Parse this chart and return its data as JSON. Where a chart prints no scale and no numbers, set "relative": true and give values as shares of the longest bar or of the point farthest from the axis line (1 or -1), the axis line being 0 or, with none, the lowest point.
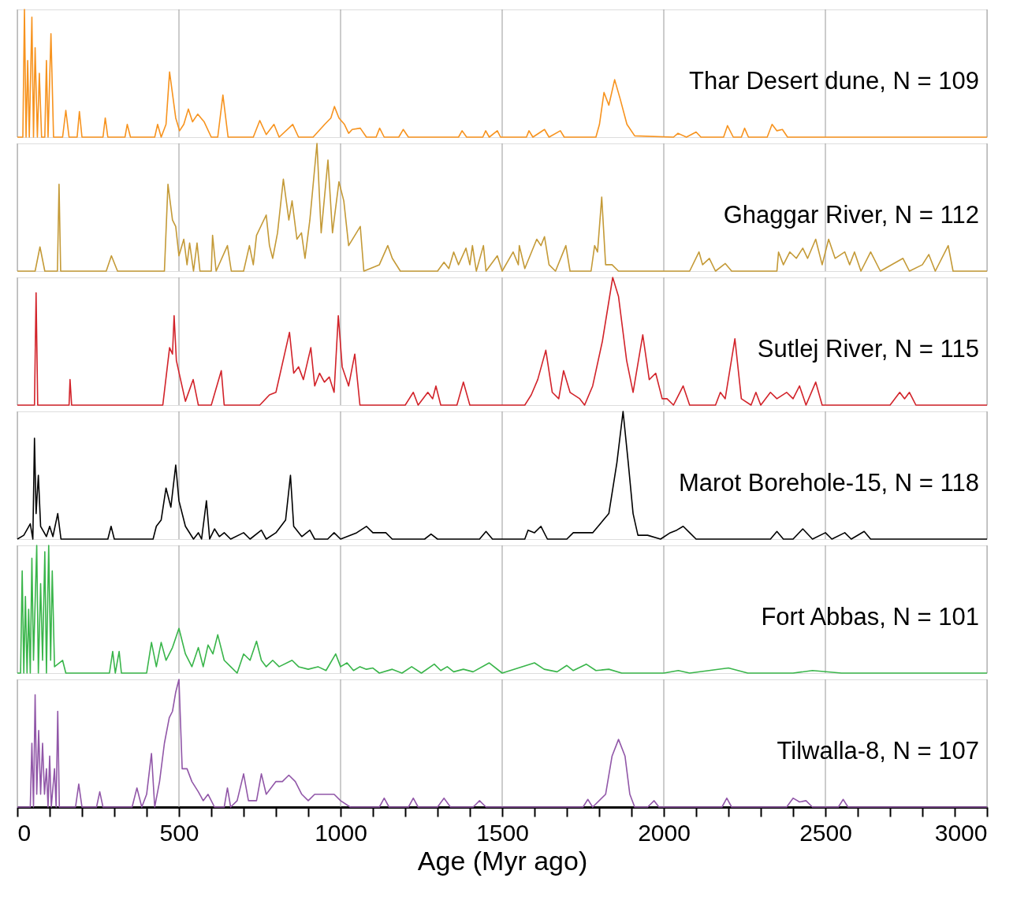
{
  "chart_data": [
    {
      "type": "line",
      "relative": true,
      "xlim": [
        0,
        3000
      ],
      "xticks": [
        0,
        500,
        1000,
        1500,
        2000,
        2500,
        3000
      ],
      "grid": "x",
      "tick_labels": false,
      "series": [
        {
          "name": "Thar Desert dune, N = 109",
          "color": "#f7931e",
          "x": [
            0,
            17,
            22,
            27,
            32,
            37,
            45,
            50,
            55,
            62,
            68,
            75,
            85,
            90,
            95,
            104,
            112,
            140,
            150,
            160,
            185,
            192,
            200,
            265,
            272,
            280,
            333,
            340,
            350,
            425,
            434,
            445,
            460,
            471,
            490,
            502,
            515,
            529,
            542,
            558,
            578,
            600,
            620,
            636,
            652,
            730,
            750,
            770,
            794,
            810,
            852,
            870,
            915,
            951,
            970,
            981,
            995,
            1012,
            1025,
            1036,
            1061,
            1080,
            1110,
            1121,
            1135,
            1180,
            1194,
            1210,
            1365,
            1376,
            1390,
            1440,
            1449,
            1460,
            1485,
            1495,
            1575,
            1583,
            1595,
            1631,
            1645,
            1680,
            1692,
            1790,
            1801,
            1815,
            1830,
            1848,
            1865,
            1886,
            1910,
            2030,
            2044,
            2070,
            2100,
            2115,
            2185,
            2197,
            2215,
            2240,
            2250,
            2262,
            2320,
            2335,
            2350,
            2367,
            2383,
            3000
          ],
          "values": [
            0,
            0,
            1.0,
            0,
            0.6,
            0,
            0.94,
            0,
            0.7,
            0,
            0.5,
            0,
            0,
            0.6,
            0,
            0.81,
            0,
            0,
            0.21,
            0,
            0,
            0.2,
            0,
            0,
            0.15,
            0,
            0,
            0.1,
            0,
            0,
            0.1,
            0,
            0.1,
            0.51,
            0.15,
            0.05,
            0.1,
            0.22,
            0.12,
            0.18,
            0.12,
            0,
            0,
            0.33,
            0,
            0,
            0.13,
            0.02,
            0.1,
            0,
            0.1,
            0,
            0,
            0.1,
            0.15,
            0.24,
            0.15,
            0.1,
            0.03,
            0.06,
            0.07,
            0,
            0,
            0.07,
            0,
            0,
            0.06,
            0,
            0,
            0.05,
            0,
            0,
            0.05,
            0,
            0.05,
            0,
            0,
            0.05,
            0,
            0.06,
            0,
            0.05,
            0,
            0,
            0.1,
            0.35,
            0.25,
            0.45,
            0.3,
            0.1,
            0.01,
            0,
            0.03,
            0,
            0.04,
            0,
            0,
            0.09,
            0,
            0,
            0.07,
            0,
            0,
            0.1,
            0.05,
            0.06,
            0,
            0
          ]
        }
      ]
    },
    {
      "type": "line",
      "relative": true,
      "xlim": [
        0,
        3000
      ],
      "xticks": [
        0,
        500,
        1000,
        1500,
        2000,
        2500,
        3000
      ],
      "grid": "x",
      "tick_labels": false,
      "series": [
        {
          "name": "Ghaggar River, N = 112",
          "color": "#c49a37",
          "x": [
            0,
            55,
            70,
            85,
            124,
            129,
            134,
            275,
            291,
            310,
            455,
            466,
            480,
            490,
            500,
            515,
            525,
            533,
            545,
            556,
            565,
            600,
            604,
            615,
            650,
            662,
            700,
            718,
            730,
            740,
            770,
            780,
            790,
            805,
            823,
            840,
            850,
            865,
            879,
            890,
            905,
            927,
            940,
            961,
            975,
            995,
            1010,
            1025,
            1061,
            1072,
            1120,
            1146,
            1160,
            1185,
            1300,
            1320,
            1335,
            1350,
            1365,
            1388,
            1400,
            1408,
            1420,
            1442,
            1450,
            1485,
            1500,
            1534,
            1550,
            1553,
            1570,
            1607,
            1620,
            1631,
            1645,
            1665,
            1697,
            1710,
            1775,
            1786,
            1795,
            1808,
            1820,
            1840,
            1860,
            2080,
            2109,
            2120,
            2141,
            2160,
            2190,
            2210,
            2350,
            2355,
            2370,
            2390,
            2410,
            2430,
            2445,
            2470,
            2490,
            2510,
            2530,
            2560,
            2575,
            2590,
            2610,
            2640,
            2670,
            2740,
            2760,
            2800,
            2820,
            2840,
            2880,
            2895,
            3000
          ],
          "values": [
            0,
            0,
            0.19,
            0,
            0,
            0.68,
            0,
            0,
            0.12,
            0,
            0,
            0.68,
            0.4,
            0.35,
            0.12,
            0.25,
            0.05,
            0.22,
            0,
            0.22,
            0,
            0,
            0.28,
            0,
            0.2,
            0,
            0,
            0.2,
            0.05,
            0.28,
            0.44,
            0.2,
            0.1,
            0.3,
            0.72,
            0.4,
            0.55,
            0.25,
            0.3,
            0.1,
            0.4,
            1.0,
            0.3,
            0.87,
            0.3,
            0.7,
            0.55,
            0.2,
            0.35,
            0,
            0.05,
            0.2,
            0.1,
            0,
            0,
            0.07,
            0.02,
            0.15,
            0.05,
            0.18,
            0.05,
            0.2,
            0,
            0.2,
            0,
            0.12,
            0,
            0.15,
            0.05,
            0.2,
            0.02,
            0.25,
            0.2,
            0.27,
            0.05,
            0,
            0.2,
            0,
            0,
            0.2,
            0.15,
            0.58,
            0.05,
            0.05,
            0,
            0,
            0.15,
            0.05,
            0.1,
            0,
            0.06,
            0,
            0,
            0.15,
            0.05,
            0.15,
            0.1,
            0.18,
            0.1,
            0.25,
            0.05,
            0.25,
            0.1,
            0.15,
            0.05,
            0.15,
            0,
            0.15,
            0,
            0.1,
            0,
            0.05,
            0.13,
            0,
            0.2,
            0,
            0
          ]
        }
      ]
    },
    {
      "type": "line",
      "relative": true,
      "xlim": [
        0,
        3000
      ],
      "xticks": [
        0,
        500,
        1000,
        1500,
        2000,
        2500,
        3000
      ],
      "grid": "x",
      "tick_labels": false,
      "series": [
        {
          "name": "Sutlej River, N = 115",
          "color": "#d2232a",
          "x": [
            0,
            53,
            58,
            63,
            160,
            163,
            168,
            450,
            471,
            480,
            485,
            492,
            505,
            520,
            544,
            560,
            600,
            631,
            640,
            750,
            780,
            800,
            842,
            855,
            870,
            885,
            908,
            920,
            935,
            950,
            965,
            980,
            993,
            1005,
            1025,
            1044,
            1060,
            1200,
            1225,
            1240,
            1270,
            1285,
            1295,
            1310,
            1360,
            1380,
            1400,
            1570,
            1590,
            1610,
            1635,
            1655,
            1675,
            1690,
            1710,
            1740,
            1755,
            1780,
            1810,
            1842,
            1860,
            1885,
            1905,
            1925,
            1935,
            1955,
            1975,
            1995,
            2010,
            2030,
            2060,
            2080,
            2160,
            2175,
            2190,
            2220,
            2240,
            2270,
            2285,
            2300,
            2330,
            2350,
            2380,
            2400,
            2420,
            2440,
            2470,
            2490,
            2700,
            2730,
            2745,
            2760,
            2780,
            3000
          ],
          "values": [
            0,
            0,
            0.88,
            0,
            0,
            0.2,
            0,
            0,
            0.45,
            0.4,
            0.7,
            0.35,
            0.2,
            0.03,
            0.2,
            0,
            0,
            0.27,
            0,
            0,
            0.08,
            0.1,
            0.57,
            0.25,
            0.3,
            0.2,
            0.45,
            0.15,
            0.25,
            0.18,
            0.22,
            0.1,
            0.7,
            0.3,
            0.15,
            0.4,
            0,
            0,
            0.1,
            0,
            0.1,
            0.05,
            0.15,
            0,
            0,
            0.18,
            0,
            0,
            0.08,
            0.2,
            0.43,
            0.1,
            0.05,
            0.27,
            0.1,
            0.05,
            0,
            0.15,
            0.5,
            1.0,
            0.85,
            0.35,
            0.1,
            0.4,
            0.55,
            0.2,
            0.25,
            0.05,
            0.05,
            0,
            0.15,
            0,
            0,
            0.1,
            0.05,
            0.52,
            0.05,
            0,
            0.1,
            0,
            0.1,
            0.05,
            0.1,
            0.05,
            0.15,
            0,
            0.18,
            0,
            0,
            0.1,
            0.05,
            0.1,
            0,
            0
          ]
        }
      ]
    },
    {
      "type": "line",
      "relative": true,
      "xlim": [
        0,
        3000
      ],
      "xticks": [
        0,
        500,
        1000,
        1500,
        2000,
        2500,
        3000
      ],
      "grid": "x",
      "tick_labels": false,
      "series": [
        {
          "name": "Marot Borehole-15, N = 118",
          "color": "#000000",
          "x": [
            0,
            20,
            40,
            48,
            53,
            58,
            65,
            72,
            90,
            100,
            110,
            125,
            135,
            280,
            290,
            300,
            420,
            430,
            445,
            460,
            475,
            490,
            500,
            520,
            545,
            560,
            570,
            585,
            595,
            610,
            625,
            640,
            660,
            700,
            720,
            755,
            770,
            800,
            830,
            845,
            855,
            880,
            905,
            920,
            960,
            980,
            1000,
            1050,
            1080,
            1100,
            1140,
            1160,
            1260,
            1280,
            1300,
            1430,
            1450,
            1470,
            1570,
            1580,
            1600,
            1620,
            1640,
            1700,
            1720,
            1780,
            1830,
            1855,
            1874,
            1890,
            1905,
            1920,
            1950,
            1990,
            2020,
            2040,
            2060,
            2080,
            2100,
            2330,
            2350,
            2370,
            2400,
            2430,
            2460,
            2500,
            2520,
            2560,
            2580,
            2620,
            2640,
            3000
          ],
          "values": [
            0,
            0.03,
            0.12,
            0,
            0.79,
            0.2,
            0.5,
            0.1,
            0.02,
            0.1,
            0.02,
            0.2,
            0,
            0,
            0.1,
            0,
            0,
            0.1,
            0.15,
            0.4,
            0.25,
            0.58,
            0.3,
            0.1,
            0,
            0.05,
            0,
            0.3,
            0,
            0.08,
            0.02,
            0.05,
            0,
            0.05,
            0,
            0.07,
            0,
            0.05,
            0.15,
            0.5,
            0.1,
            0.02,
            0.07,
            0,
            0,
            0.05,
            0,
            0.05,
            0.1,
            0.05,
            0.05,
            0,
            0,
            0.04,
            0,
            0,
            0.06,
            0,
            0,
            0.07,
            0.05,
            0.1,
            0,
            0,
            0.05,
            0.05,
            0.2,
            0.6,
            1.0,
            0.6,
            0.2,
            0.03,
            0.03,
            0,
            0.05,
            0.07,
            0.1,
            0.05,
            0,
            0,
            0.06,
            0,
            0,
            0.08,
            0,
            0.05,
            0,
            0.05,
            0,
            0.06,
            0,
            0
          ]
        }
      ]
    },
    {
      "type": "line",
      "relative": true,
      "xlim": [
        0,
        3000
      ],
      "xticks": [
        0,
        500,
        1000,
        1500,
        2000,
        2500,
        3000
      ],
      "grid": "x",
      "tick_labels": false,
      "series": [
        {
          "name": "Fort Abbas, N = 101",
          "color": "#39b54a",
          "x": [
            0,
            10,
            15,
            20,
            25,
            30,
            35,
            40,
            45,
            50,
            60,
            65,
            72,
            78,
            85,
            90,
            97,
            103,
            108,
            115,
            140,
            150,
            285,
            295,
            303,
            315,
            322,
            400,
            415,
            430,
            445,
            460,
            480,
            500,
            520,
            540,
            560,
            575,
            590,
            605,
            620,
            640,
            660,
            680,
            700,
            720,
            740,
            755,
            770,
            790,
            810,
            850,
            870,
            900,
            930,
            955,
            985,
            1000,
            1020,
            1040,
            1060,
            1080,
            1100,
            1120,
            1160,
            1190,
            1220,
            1250,
            1290,
            1310,
            1330,
            1350,
            1380,
            1410,
            1460,
            1500,
            1600,
            1630,
            1670,
            1700,
            1720,
            1760,
            1790,
            1830,
            1870,
            2000,
            2045,
            2080,
            2200,
            2260,
            2400,
            2460,
            2550,
            3000
          ],
          "values": [
            0,
            0,
            0.8,
            0,
            0.6,
            0,
            0.5,
            0,
            0.9,
            0.1,
            1.0,
            0,
            0.7,
            0.1,
            0.95,
            0,
            1.0,
            0.1,
            0.8,
            0.05,
            0.1,
            0,
            0,
            0.17,
            0,
            0.17,
            0,
            0,
            0.24,
            0.05,
            0.24,
            0.1,
            0.2,
            0.35,
            0.15,
            0.05,
            0.2,
            0.05,
            0.22,
            0.15,
            0.3,
            0.1,
            0.05,
            0,
            0.15,
            0.1,
            0.25,
            0.1,
            0.05,
            0.1,
            0.05,
            0.1,
            0.05,
            0.03,
            0.05,
            0.02,
            0.15,
            0.05,
            0.08,
            0.02,
            0.05,
            0.03,
            0.04,
            0,
            0.03,
            0,
            0.05,
            0,
            0.07,
            0.02,
            0.05,
            0.01,
            0.03,
            0.01,
            0.08,
            0,
            0.08,
            0.03,
            0.01,
            0.06,
            0.02,
            0.07,
            0.02,
            0.03,
            0,
            0,
            0.02,
            0,
            0.04,
            0,
            0,
            0.02,
            0,
            0
          ]
        }
      ]
    },
    {
      "type": "line",
      "relative": true,
      "xlim": [
        0,
        3000
      ],
      "xticks": [
        0,
        {
          "value": 100,
          "label": null
        },
        {
          "value": 200,
          "label": null
        },
        {
          "value": 300,
          "label": null
        },
        {
          "value": 400,
          "label": null
        },
        500,
        {
          "value": 600,
          "label": null
        },
        {
          "value": 700,
          "label": null
        },
        {
          "value": 800,
          "label": null
        },
        {
          "value": 900,
          "label": null
        },
        1000,
        {
          "value": 1100,
          "label": null
        },
        {
          "value": 1200,
          "label": null
        },
        {
          "value": 1300,
          "label": null
        },
        {
          "value": 1400,
          "label": null
        },
        1500,
        {
          "value": 1600,
          "label": null
        },
        {
          "value": 1700,
          "label": null
        },
        {
          "value": 1800,
          "label": null
        },
        {
          "value": 1900,
          "label": null
        },
        2000,
        {
          "value": 2100,
          "label": null
        },
        {
          "value": 2200,
          "label": null
        },
        {
          "value": 2300,
          "label": null
        },
        {
          "value": 2400,
          "label": null
        },
        2500,
        {
          "value": 2600,
          "label": null
        },
        {
          "value": 2700,
          "label": null
        },
        {
          "value": 2800,
          "label": null
        },
        {
          "value": 2900,
          "label": null
        },
        3000
      ],
      "grid": "x",
      "tick_labels": "x",
      "xlabel": "Age (Myr ago)",
      "series": [
        {
          "name": "Tilwalla-8, N = 107",
          "color": "#9157a8",
          "x": [
            0,
            40,
            45,
            50,
            55,
            60,
            66,
            72,
            78,
            84,
            90,
            95,
            100,
            105,
            115,
            120,
            125,
            130,
            180,
            190,
            200,
            245,
            255,
            265,
            355,
            370,
            385,
            400,
            415,
            425,
            440,
            455,
            470,
            480,
            490,
            500,
            510,
            525,
            540,
            560,
            575,
            590,
            610,
            640,
            650,
            660,
            680,
            700,
            715,
            740,
            755,
            770,
            800,
            820,
            840,
            860,
            880,
            900,
            920,
            950,
            980,
            1000,
            1030,
            1120,
            1135,
            1150,
            1210,
            1225,
            1240,
            1300,
            1320,
            1340,
            1410,
            1430,
            1450,
            1750,
            1765,
            1780,
            1820,
            1840,
            1860,
            1880,
            1895,
            1910,
            1950,
            1970,
            1985,
            2180,
            2195,
            2210,
            2380,
            2400,
            2420,
            2440,
            2460,
            2540,
            2555,
            2570,
            3000
          ],
          "values": [
            0,
            0,
            0.5,
            0,
            0.88,
            0.1,
            0.6,
            0.1,
            0.5,
            0.1,
            0.3,
            0,
            0.4,
            0,
            0.3,
            0,
            0.75,
            0,
            0,
            0.18,
            0,
            0,
            0.12,
            0,
            0,
            0.15,
            0,
            0.1,
            0.42,
            0,
            0.2,
            0.5,
            0.7,
            0.75,
            0.9,
            1.0,
            0.3,
            0.3,
            0.2,
            0.12,
            0.05,
            0.1,
            0,
            0,
            0.15,
            0,
            0.05,
            0.26,
            0.05,
            0.05,
            0.26,
            0.1,
            0.2,
            0.2,
            0.25,
            0.2,
            0.1,
            0.05,
            0.1,
            0.1,
            0.1,
            0.05,
            0,
            0,
            0.07,
            0,
            0,
            0.07,
            0,
            0,
            0.07,
            0,
            0,
            0.05,
            0,
            0,
            0.06,
            0,
            0.1,
            0.4,
            0.53,
            0.4,
            0.1,
            0,
            0,
            0.05,
            0,
            0,
            0.07,
            0,
            0,
            0.07,
            0.04,
            0.05,
            0,
            0,
            0.06,
            0,
            0
          ]
        }
      ]
    }
  ]
}
